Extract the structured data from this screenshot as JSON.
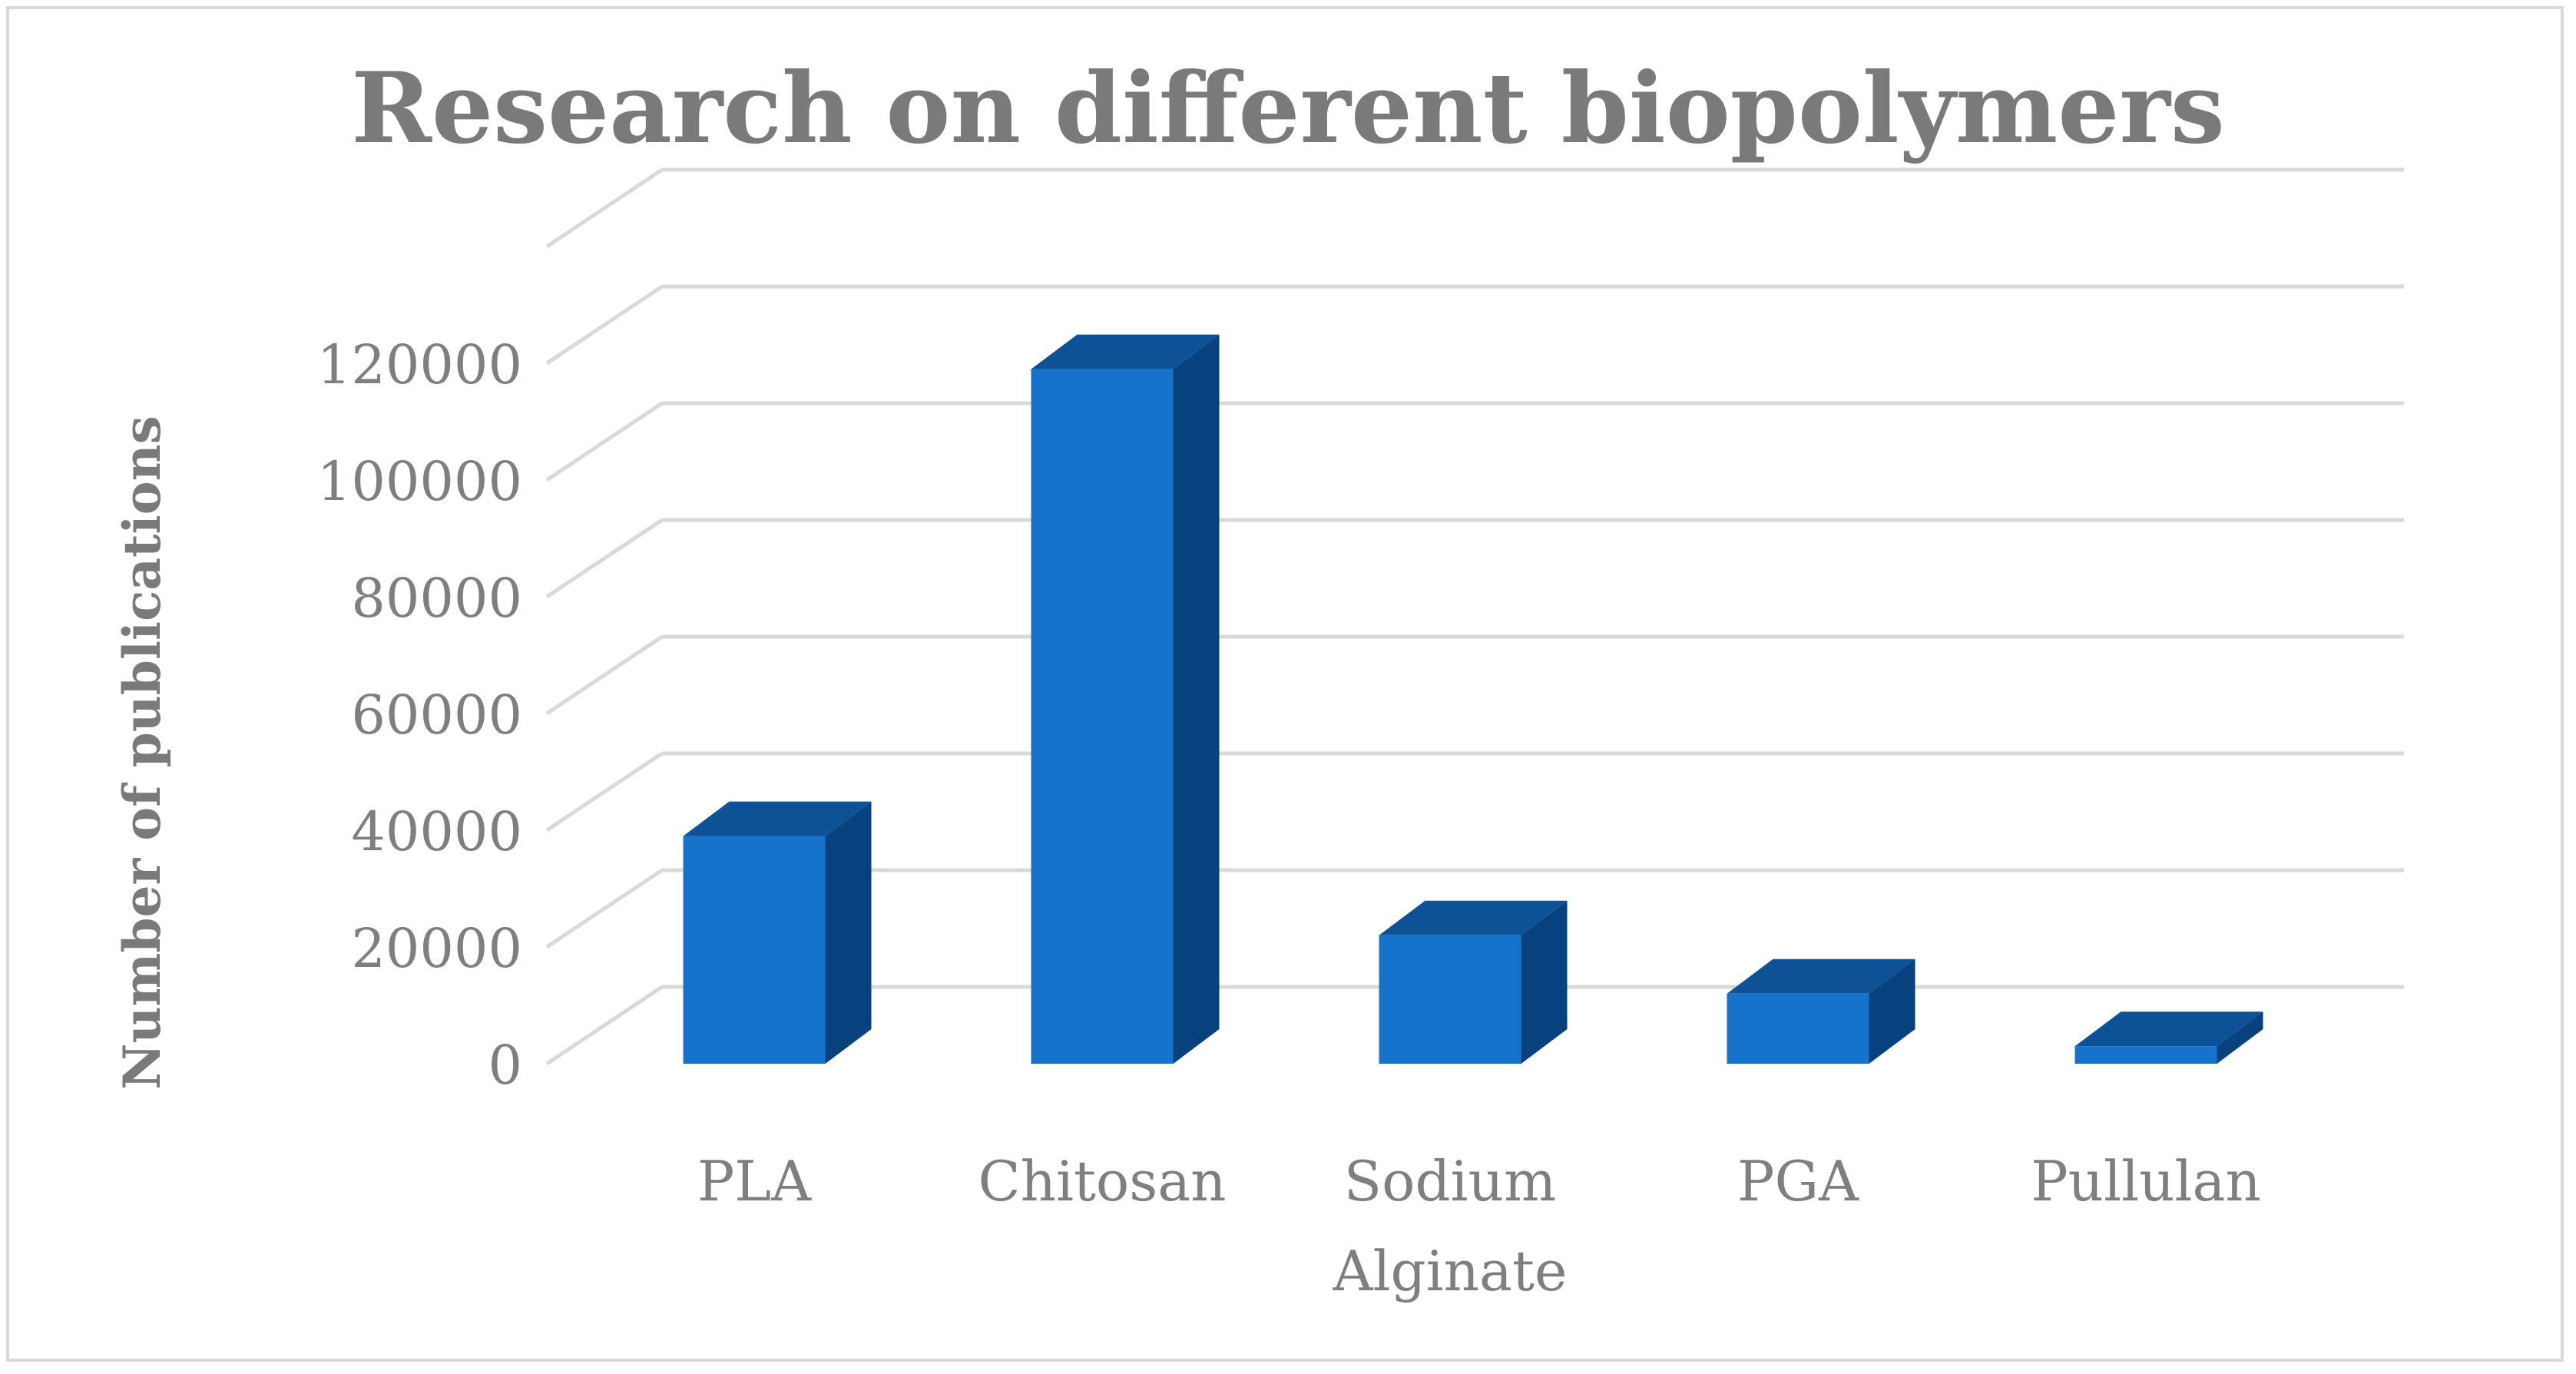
{
  "chart_data": {
    "type": "bar",
    "style": "3d-column",
    "title": "Research on different biopolymers",
    "xlabel": "",
    "ylabel": "Number of publications",
    "categories": [
      "PLA",
      "Chitosan",
      "Sodium Alginate",
      "PGA",
      "Pullulan"
    ],
    "category_lines": [
      [
        "PLA"
      ],
      [
        "Chitosan"
      ],
      [
        "Sodium",
        "Alginate"
      ],
      [
        "PGA"
      ],
      [
        "Pullulan"
      ]
    ],
    "values": [
      39000,
      119000,
      22000,
      12000,
      3000
    ],
    "ylim": [
      0,
      130000
    ],
    "yticks": [
      0,
      20000,
      40000,
      60000,
      80000,
      100000,
      120000
    ],
    "grid": true,
    "legend": "none",
    "colors": {
      "front": "#1673cc",
      "side": "#08427e",
      "top": "#0d5296",
      "grid": "#d9d9d9",
      "text": "#7f7f7f"
    }
  }
}
